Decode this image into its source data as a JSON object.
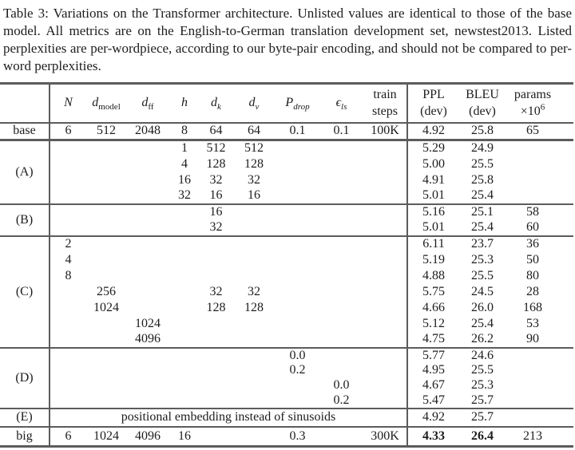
{
  "caption": "Table 3: Variations on the Transformer architecture. Unlisted values are identical to those of the base model. All metrics are on the English-to-German translation development set, newstest2013. Listed perplexities are per-wordpiece, according to our byte-pair encoding, and should not be compared to per-word perplexities.",
  "table": {
    "columns": [
      {
        "key": "row-label",
        "header": null
      },
      {
        "key": "N",
        "header": {
          "it": "N"
        }
      },
      {
        "key": "d-model",
        "header": {
          "it": "d",
          "sub": "model",
          "sub_it": false
        }
      },
      {
        "key": "d-ff",
        "header": {
          "it": "d",
          "sub": "ff",
          "sub_it": false
        }
      },
      {
        "key": "h",
        "header": {
          "it": "h"
        }
      },
      {
        "key": "d-k",
        "header": {
          "it": "d",
          "sub": "k",
          "sub_it": true
        }
      },
      {
        "key": "d-v",
        "header": {
          "it": "d",
          "sub": "v",
          "sub_it": true
        }
      },
      {
        "key": "p-drop",
        "header": {
          "it": "P",
          "sub": "drop",
          "sub_it": true
        }
      },
      {
        "key": "eps-ls",
        "header": {
          "it": "ϵ",
          "sub": "ls",
          "sub_it": true
        }
      },
      {
        "key": "train-steps",
        "header": {
          "lines": [
            "train",
            "steps"
          ]
        }
      },
      {
        "key": "ppl-dev",
        "header": {
          "lines": [
            "PPL",
            "(dev)"
          ]
        }
      },
      {
        "key": "bleu-dev",
        "header": {
          "lines": [
            "BLEU",
            "(dev)"
          ]
        }
      },
      {
        "key": "params",
        "header": {
          "lines": [
            "params",
            "×10"
          ],
          "sup": "6"
        }
      }
    ],
    "rows": [
      {
        "label": "base",
        "labelspan": 1,
        "cls": "r-base",
        "cells": [
          "6",
          "512",
          "2048",
          "8",
          "64",
          "64",
          "0.1",
          "0.1",
          "100K",
          "4.92",
          "25.8",
          "65"
        ]
      },
      {
        "label": "(A)",
        "labelspan": 4,
        "sep": true,
        "cells": [
          "",
          "",
          "",
          "1",
          "512",
          "512",
          "",
          "",
          "",
          "5.29",
          "24.9",
          ""
        ]
      },
      {
        "cells": [
          "",
          "",
          "",
          "4",
          "128",
          "128",
          "",
          "",
          "",
          "5.00",
          "25.5",
          ""
        ]
      },
      {
        "cells": [
          "",
          "",
          "",
          "16",
          "32",
          "32",
          "",
          "",
          "",
          "4.91",
          "25.8",
          ""
        ]
      },
      {
        "cells": [
          "",
          "",
          "",
          "32",
          "16",
          "16",
          "",
          "",
          "",
          "5.01",
          "25.4",
          ""
        ]
      },
      {
        "label": "(B)",
        "labelspan": 2,
        "sep": true,
        "cells": [
          "",
          "",
          "",
          "",
          "16",
          "",
          "",
          "",
          "",
          "5.16",
          "25.1",
          "58"
        ]
      },
      {
        "cells": [
          "",
          "",
          "",
          "",
          "32",
          "",
          "",
          "",
          "",
          "5.01",
          "25.4",
          "60"
        ]
      },
      {
        "label": "(C)",
        "labelspan": 7,
        "sep": true,
        "cells": [
          "2",
          "",
          "",
          "",
          "",
          "",
          "",
          "",
          "",
          "6.11",
          "23.7",
          "36"
        ]
      },
      {
        "cells": [
          "4",
          "",
          "",
          "",
          "",
          "",
          "",
          "",
          "",
          "5.19",
          "25.3",
          "50"
        ]
      },
      {
        "cells": [
          "8",
          "",
          "",
          "",
          "",
          "",
          "",
          "",
          "",
          "4.88",
          "25.5",
          "80"
        ]
      },
      {
        "cells": [
          "",
          "256",
          "",
          "",
          "32",
          "32",
          "",
          "",
          "",
          "5.75",
          "24.5",
          "28"
        ]
      },
      {
        "cells": [
          "",
          "1024",
          "",
          "",
          "128",
          "128",
          "",
          "",
          "",
          "4.66",
          "26.0",
          "168"
        ]
      },
      {
        "cells": [
          "",
          "",
          "1024",
          "",
          "",
          "",
          "",
          "",
          "",
          "5.12",
          "25.4",
          "53"
        ]
      },
      {
        "cells": [
          "",
          "",
          "4096",
          "",
          "",
          "",
          "",
          "",
          "",
          "4.75",
          "26.2",
          "90"
        ]
      },
      {
        "label": "(D)",
        "labelspan": 4,
        "sep": true,
        "cls": "r-d",
        "cells": [
          "",
          "",
          "",
          "",
          "",
          "",
          "0.0",
          "",
          "",
          "5.77",
          "24.6",
          ""
        ]
      },
      {
        "cls": "r-d",
        "cells": [
          "",
          "",
          "",
          "",
          "",
          "",
          "0.2",
          "",
          "",
          "4.95",
          "25.5",
          ""
        ]
      },
      {
        "cls": "r-d",
        "cells": [
          "",
          "",
          "",
          "",
          "",
          "",
          "",
          "0.0",
          "",
          "4.67",
          "25.3",
          ""
        ]
      },
      {
        "cls": "r-d",
        "cells": [
          "",
          "",
          "",
          "",
          "",
          "",
          "",
          "0.2",
          "",
          "5.47",
          "25.7",
          ""
        ]
      },
      {
        "label": "(E)",
        "labelspan": 1,
        "sep": true,
        "cls": "r-e",
        "wide": "positional embedding instead of sinusoids",
        "right": [
          "4.92",
          "25.7",
          ""
        ]
      },
      {
        "label": "big",
        "labelspan": 1,
        "sep": true,
        "cls": "r-big",
        "cells": [
          "6",
          "1024",
          "4096",
          "16",
          "",
          "",
          "0.3",
          "",
          "300K",
          "4.33",
          "26.4",
          "213"
        ],
        "bold": [
          9,
          10
        ]
      }
    ]
  }
}
